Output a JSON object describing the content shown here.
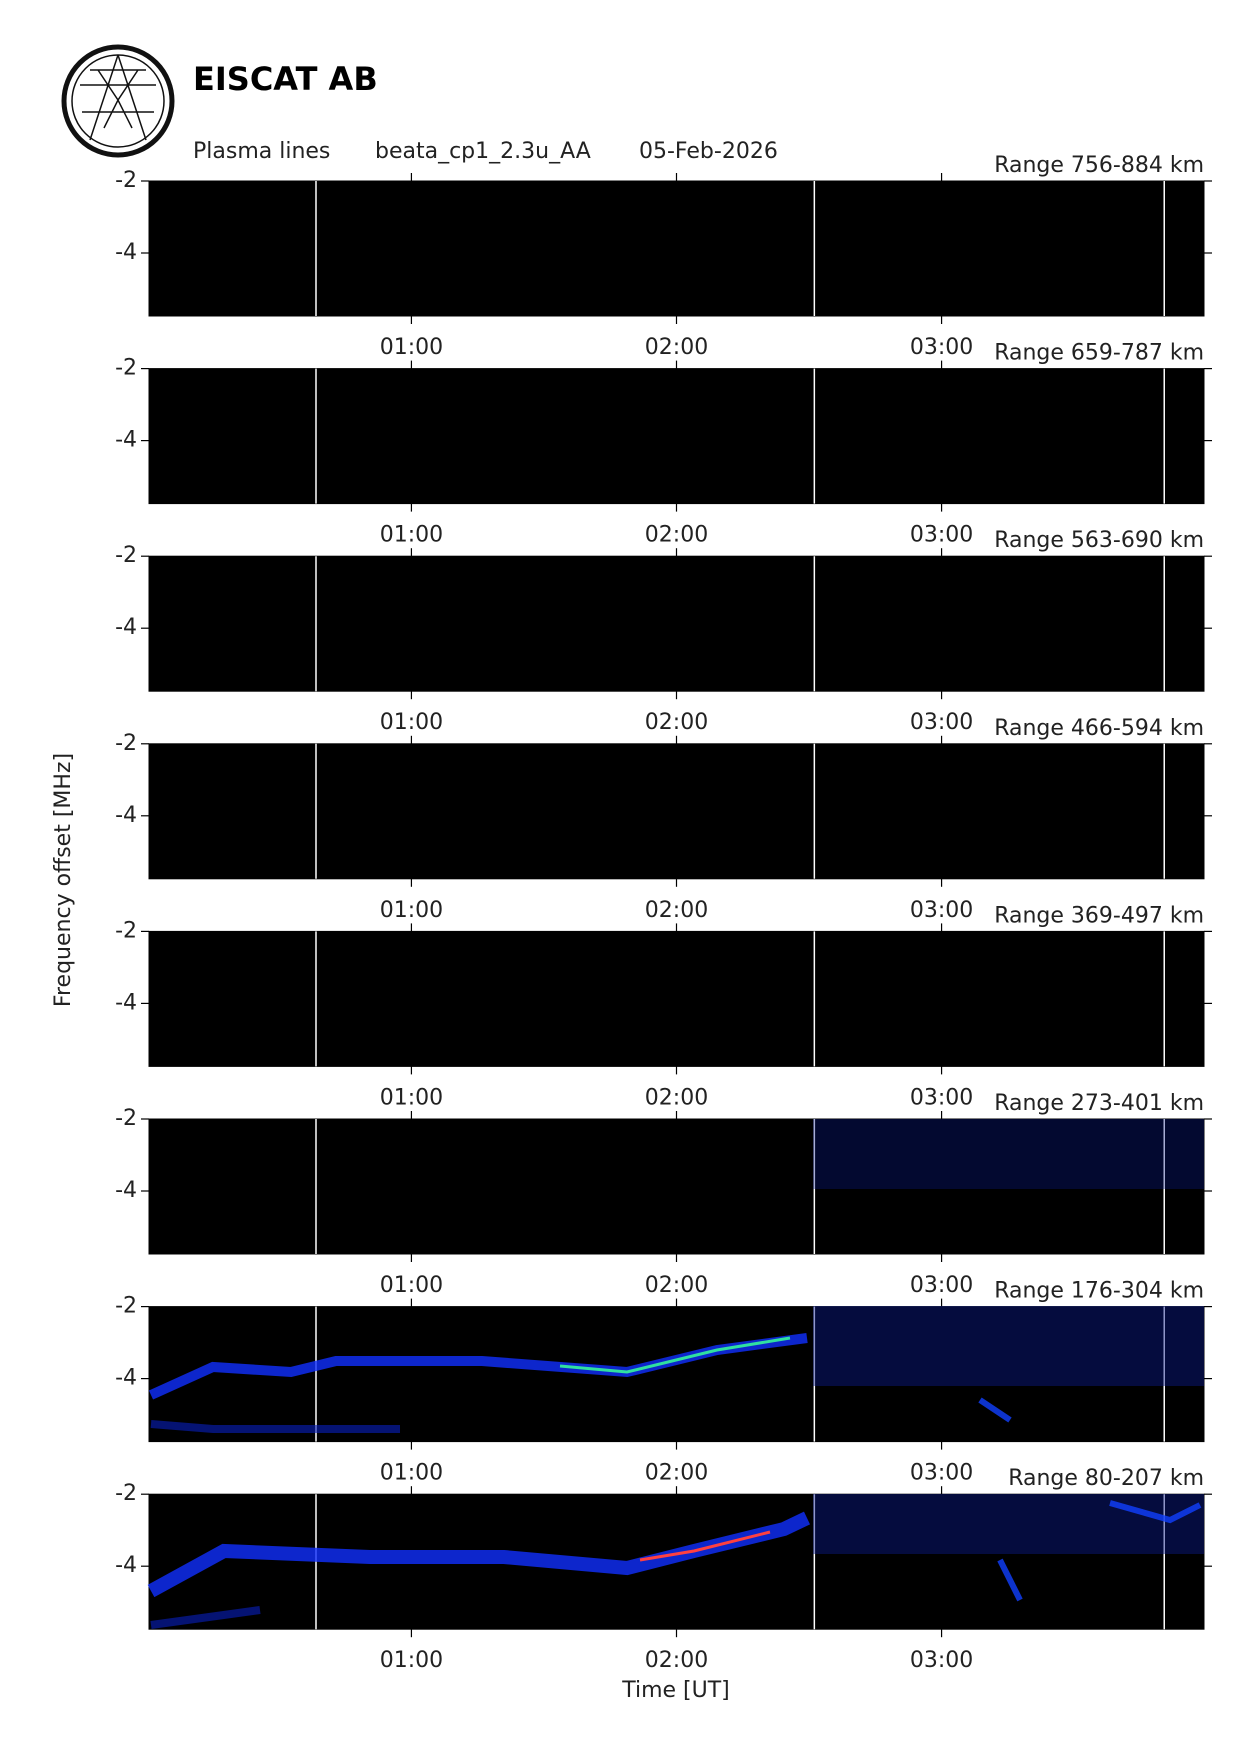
{
  "header": {
    "org": "EISCAT AB",
    "kind": "Plasma lines",
    "experiment": "beata_cp1_2.3u_AA",
    "date": "05-Feb-2026"
  },
  "figure": {
    "ylabel": "Frequency offset [MHz]",
    "xlabel": "Time [UT]"
  },
  "chart_data": [
    {
      "type": "spectrogram",
      "title": "Range 756-884 km",
      "xlim": [
        0.01,
        3.99
      ],
      "xticks": [
        {
          "value": 1,
          "label": "01:00"
        },
        {
          "value": 2,
          "label": "02:00"
        },
        {
          "value": 3,
          "label": "03:00"
        }
      ],
      "ylim": [
        -5.75,
        -2
      ],
      "yticks": [
        -2,
        -4
      ],
      "vlines": [
        0.64,
        2.52,
        3.84
      ]
    },
    {
      "type": "spectrogram",
      "title": "Range 659-787 km",
      "xlim": [
        0.01,
        3.99
      ],
      "xticks": [
        {
          "value": 1,
          "label": "01:00"
        },
        {
          "value": 2,
          "label": "02:00"
        },
        {
          "value": 3,
          "label": "03:00"
        }
      ],
      "ylim": [
        -5.75,
        -2
      ],
      "yticks": [
        -2,
        -4
      ],
      "vlines": [
        0.64,
        2.52,
        3.84
      ]
    },
    {
      "type": "spectrogram",
      "title": "Range 563-690 km",
      "xlim": [
        0.01,
        3.99
      ],
      "xticks": [
        {
          "value": 1,
          "label": "01:00"
        },
        {
          "value": 2,
          "label": "02:00"
        },
        {
          "value": 3,
          "label": "03:00"
        }
      ],
      "ylim": [
        -5.75,
        -2
      ],
      "yticks": [
        -2,
        -4
      ],
      "vlines": [
        0.64,
        2.52,
        3.84
      ]
    },
    {
      "type": "spectrogram",
      "title": "Range 466-594 km",
      "xlim": [
        0.01,
        3.99
      ],
      "xticks": [
        {
          "value": 1,
          "label": "01:00"
        },
        {
          "value": 2,
          "label": "02:00"
        },
        {
          "value": 3,
          "label": "03:00"
        }
      ],
      "ylim": [
        -5.75,
        -2
      ],
      "yticks": [
        -2,
        -4
      ],
      "vlines": [
        0.64,
        2.52,
        3.84
      ]
    },
    {
      "type": "spectrogram",
      "title": "Range 369-497 km",
      "xlim": [
        0.01,
        3.99
      ],
      "xticks": [
        {
          "value": 1,
          "label": "01:00"
        },
        {
          "value": 2,
          "label": "02:00"
        },
        {
          "value": 3,
          "label": "03:00"
        }
      ],
      "ylim": [
        -5.75,
        -2
      ],
      "yticks": [
        -2,
        -4
      ],
      "vlines": [
        0.64,
        2.52,
        3.84
      ]
    },
    {
      "type": "spectrogram",
      "title": "Range 273-401 km",
      "xlim": [
        0.01,
        3.99
      ],
      "xticks": [
        {
          "value": 1,
          "label": "01:00"
        },
        {
          "value": 2,
          "label": "02:00"
        },
        {
          "value": 3,
          "label": "03:00"
        }
      ],
      "ylim": [
        -5.75,
        -2
      ],
      "yticks": [
        -2,
        -4
      ],
      "vlines": [
        0.64,
        2.52,
        3.84
      ]
    },
    {
      "type": "spectrogram",
      "title": "Range 176-304 km",
      "xlim": [
        0.01,
        3.99
      ],
      "xticks": [
        {
          "value": 1,
          "label": "01:00"
        },
        {
          "value": 2,
          "label": "02:00"
        },
        {
          "value": 3,
          "label": "03:00"
        }
      ],
      "ylim": [
        -5.75,
        -2
      ],
      "yticks": [
        -2,
        -4
      ],
      "vlines": [
        0.64,
        2.52,
        3.84
      ]
    },
    {
      "type": "spectrogram",
      "title": "Range 80-207 km",
      "xlim": [
        0.01,
        3.99
      ],
      "xticks": [
        {
          "value": 1,
          "label": "01:00"
        },
        {
          "value": 2,
          "label": "02:00"
        },
        {
          "value": 3,
          "label": "03:00"
        }
      ],
      "ylim": [
        -5.75,
        -2
      ],
      "yticks": [
        -2,
        -4
      ],
      "vlines": [
        0.64,
        2.52,
        3.84
      ]
    }
  ]
}
